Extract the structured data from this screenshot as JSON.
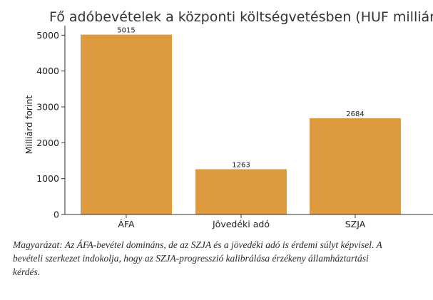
{
  "chart_data": {
    "type": "bar",
    "title": "Fő adóbevételek a központi költségvetésben (HUF milliárd)",
    "xlabel": "",
    "ylabel": "Milliárd forint",
    "categories": [
      "ÁFA",
      "Jövedéki adó",
      "SZJA"
    ],
    "values": [
      5015,
      1263,
      2684
    ],
    "data_labels": [
      "5015",
      "1263",
      "2684"
    ],
    "ylim": [
      0,
      5265
    ],
    "yticks": [
      0,
      1000,
      2000,
      3000,
      4000,
      5000
    ],
    "ytick_labels": [
      "0",
      "1000",
      "2000",
      "3000",
      "4000",
      "5000"
    ],
    "bar_color": "#dd9a3f",
    "grid": false,
    "legend": "none"
  },
  "caption": "Magyarázat: Az ÁFA-bevétel domináns, de az SZJA és a jövedéki adó is érdemi súlyt képvisel. A bevételi szerkezet indokolja, hogy az SZJA-progresszió kalibrálása érzékeny államháztartási kérdés."
}
